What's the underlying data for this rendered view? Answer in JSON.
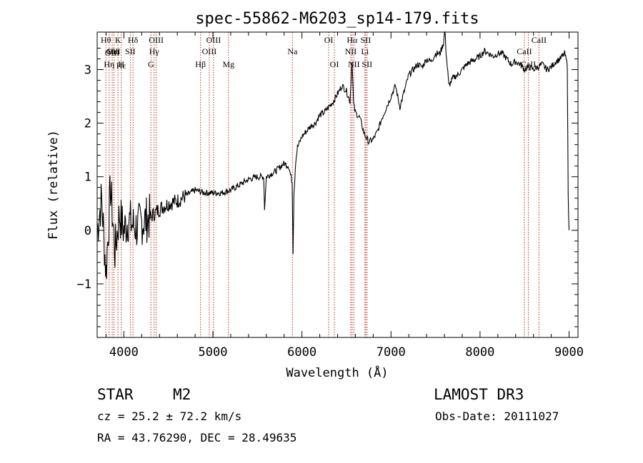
{
  "chart_data": {
    "type": "line",
    "title": "spec-55862-M6203_sp14-179.fits",
    "xlabel": "Wavelength (Å)",
    "ylabel": "Flux (relative)",
    "xlim": [
      3700,
      9100
    ],
    "ylim": [
      -2,
      3.7
    ],
    "x_ticks": [
      4000,
      5000,
      6000,
      7000,
      8000,
      9000
    ],
    "y_ticks": [
      -1,
      0,
      1,
      2,
      3
    ],
    "grid": false,
    "series": [
      {
        "name": "spectrum",
        "color": "#000000",
        "x": [
          3700,
          3750,
          3800,
          3850,
          3900,
          3950,
          4000,
          4050,
          4100,
          4150,
          4200,
          4300,
          4400,
          4500,
          4600,
          4700,
          4800,
          4900,
          5000,
          5100,
          5200,
          5300,
          5400,
          5500,
          5570,
          5580,
          5600,
          5700,
          5800,
          5850,
          5890,
          5900,
          5910,
          5930,
          5950,
          6000,
          6050,
          6100,
          6150,
          6200,
          6250,
          6300,
          6350,
          6400,
          6450,
          6500,
          6540,
          6562,
          6580,
          6600,
          6650,
          6700,
          6750,
          6800,
          6850,
          6900,
          6950,
          7000,
          7050,
          7100,
          7150,
          7200,
          7250,
          7300,
          7350,
          7400,
          7450,
          7500,
          7550,
          7590,
          7605,
          7620,
          7650,
          7700,
          7750,
          7800,
          7850,
          7900,
          7950,
          8000,
          8050,
          8100,
          8150,
          8200,
          8250,
          8300,
          8350,
          8400,
          8450,
          8500,
          8550,
          8600,
          8650,
          8700,
          8750,
          8800,
          8850,
          8900,
          8950,
          8980,
          8990,
          9000
        ],
        "y": [
          0,
          0.6,
          -0.8,
          0.8,
          -0.4,
          0.3,
          0.0,
          0.2,
          0.1,
          0.05,
          0.15,
          0.25,
          0.4,
          0.5,
          0.55,
          0.65,
          0.75,
          0.7,
          0.7,
          0.7,
          0.75,
          0.85,
          0.95,
          1.0,
          1.0,
          0.4,
          1.0,
          1.1,
          1.25,
          1.2,
          0.9,
          -0.4,
          0.7,
          1.3,
          1.55,
          1.75,
          1.85,
          1.95,
          2.0,
          2.15,
          2.2,
          2.3,
          2.4,
          2.55,
          2.7,
          2.6,
          2.4,
          3.2,
          2.35,
          2.2,
          2.1,
          1.8,
          1.65,
          1.7,
          1.85,
          2.1,
          2.3,
          2.5,
          2.7,
          2.3,
          2.6,
          2.9,
          3.0,
          3.1,
          3.05,
          3.2,
          3.15,
          3.3,
          3.3,
          3.5,
          3.75,
          3.3,
          2.7,
          2.85,
          2.9,
          3.0,
          3.1,
          3.15,
          3.2,
          3.25,
          3.35,
          3.3,
          3.25,
          3.3,
          3.3,
          3.2,
          3.1,
          3.15,
          3.1,
          3.0,
          3.05,
          3.0,
          3.05,
          3.1,
          3.0,
          3.05,
          3.15,
          3.2,
          3.3,
          3.1,
          0.6,
          0.0
        ]
      }
    ],
    "lines": [
      {
        "x": 3798,
        "labels": [
          "Hθ"
        ],
        "row": 1
      },
      {
        "x": 3835,
        "labels": [
          "Hη"
        ],
        "row": 3
      },
      {
        "x": 3869,
        "labels": [
          "OII",
          "OIII"
        ],
        "row": 2
      },
      {
        "x": 3889,
        "labels": [
          "HeI"
        ],
        "row": 2
      },
      {
        "x": 3934,
        "labels": [
          "K"
        ],
        "row": 1
      },
      {
        "x": 3970,
        "labels": [
          "H",
          "Hε"
        ],
        "row": 3
      },
      {
        "x": 4072,
        "labels": [
          "SII"
        ],
        "row": 2
      },
      {
        "x": 4102,
        "labels": [
          "Hδ"
        ],
        "row": 1
      },
      {
        "x": 4304,
        "labels": [
          "G"
        ],
        "row": 3
      },
      {
        "x": 4340,
        "labels": [
          "Hγ"
        ],
        "row": 2
      },
      {
        "x": 4363,
        "labels": [
          "OIII"
        ],
        "row": 1
      },
      {
        "x": 4861,
        "labels": [
          "Hβ"
        ],
        "row": 3
      },
      {
        "x": 4959,
        "labels": [
          "OIII"
        ],
        "row": 2
      },
      {
        "x": 5007,
        "labels": [
          "OIII"
        ],
        "row": 1
      },
      {
        "x": 5175,
        "labels": [
          "Mg"
        ],
        "row": 3
      },
      {
        "x": 5893,
        "labels": [
          "Na"
        ],
        "row": 2
      },
      {
        "x": 6300,
        "labels": [
          "OI"
        ],
        "row": 1
      },
      {
        "x": 6364,
        "labels": [
          "OI"
        ],
        "row": 3
      },
      {
        "x": 6548,
        "labels": [
          "NII"
        ],
        "row": 2
      },
      {
        "x": 6563,
        "labels": [
          "Hα"
        ],
        "row": 1
      },
      {
        "x": 6583,
        "labels": [
          "NII"
        ],
        "row": 3
      },
      {
        "x": 6707,
        "labels": [
          "Li"
        ],
        "row": 2
      },
      {
        "x": 6716,
        "labels": [
          "SII"
        ],
        "row": 1
      },
      {
        "x": 6731,
        "labels": [
          "SII"
        ],
        "row": 3
      },
      {
        "x": 8498,
        "labels": [
          "CaII"
        ],
        "row": 2
      },
      {
        "x": 8542,
        "labels": [
          "CaII"
        ],
        "row": 3
      },
      {
        "x": 8662,
        "labels": [
          "CaII"
        ],
        "row": 1
      }
    ]
  },
  "footer": {
    "class_label": "STAR",
    "subclass": "M2",
    "survey": "LAMOST DR3",
    "cz_text": "cz = 25.2 ± 72.2 km/s",
    "obs_date": "Obs-Date: 20111027",
    "coords": "RA =  43.76290, DEC =  28.49635"
  }
}
